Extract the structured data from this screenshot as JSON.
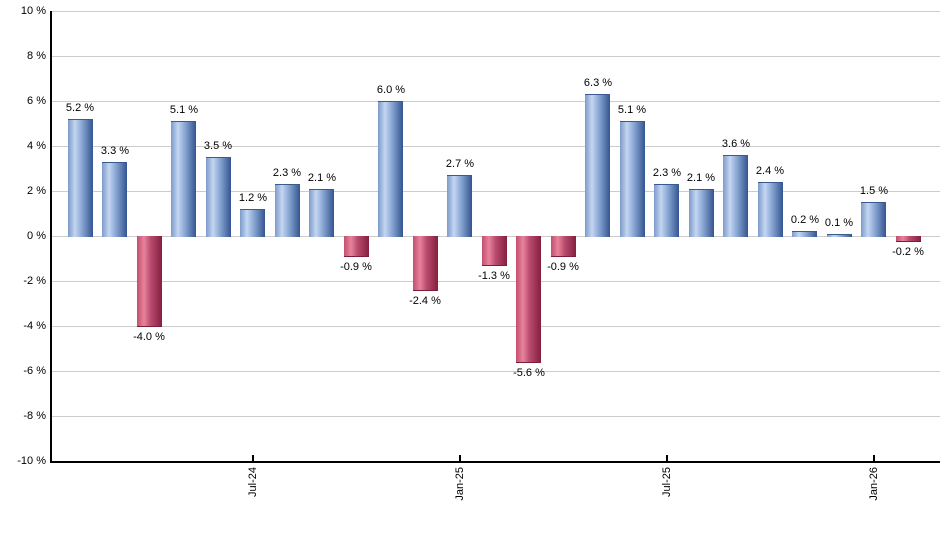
{
  "chart_data": {
    "type": "bar",
    "title": "",
    "unit": "%",
    "grid": true,
    "legend_position": "none",
    "ylim": [
      -10,
      10
    ],
    "values": [
      5.2,
      3.3,
      -4.0,
      5.1,
      3.5,
      1.2,
      2.3,
      2.1,
      -0.9,
      6.0,
      -2.4,
      2.7,
      -1.3,
      -5.6,
      -0.9,
      6.3,
      5.1,
      2.3,
      2.1,
      3.6,
      2.4,
      0.2,
      0.1,
      1.5,
      -0.2
    ],
    "bar_labels": [
      "5.2 %",
      "3.3 %",
      "-4.0 %",
      "5.1 %",
      "3.5 %",
      "1.2 %",
      "2.3 %",
      "2.1 %",
      "-0.9 %",
      "6.0 %",
      "-2.4 %",
      "2.7 %",
      "-1.3 %",
      "-5.6 %",
      "-0.9 %",
      "6.3 %",
      "5.1 %",
      "2.3 %",
      "2.1 %",
      "3.6 %",
      "2.4 %",
      "0.2 %",
      "0.1 %",
      "1.5 %",
      "-0.2 %"
    ],
    "x_ticks": [
      {
        "label": "Jul-24",
        "bar_index": 5
      },
      {
        "label": "Jan-25",
        "bar_index": 11
      },
      {
        "label": "Jul-25",
        "bar_index": 17
      },
      {
        "label": "Jan-26",
        "bar_index": 23
      }
    ],
    "y_ticks": [
      {
        "label": "10 %",
        "value": 10
      },
      {
        "label": "8 %",
        "value": 8
      },
      {
        "label": "6 %",
        "value": 6
      },
      {
        "label": "4 %",
        "value": 4
      },
      {
        "label": "2 %",
        "value": 2
      },
      {
        "label": "0 %",
        "value": 0
      },
      {
        "label": "-2 %",
        "value": -2
      },
      {
        "label": "-4 %",
        "value": -4
      },
      {
        "label": "-6 %",
        "value": -6
      },
      {
        "label": "-8 %",
        "value": -8
      },
      {
        "label": "-10 %",
        "value": -10
      }
    ],
    "colors": {
      "positive_bar_light": "#c4d6f1",
      "positive_bar_dark": "#335590",
      "negative_bar_light": "#e8839b",
      "negative_bar_dark": "#84203f",
      "gridline": "#cccccc",
      "axis": "#000000",
      "label_text": "#000000",
      "background": "#ffffff"
    }
  }
}
